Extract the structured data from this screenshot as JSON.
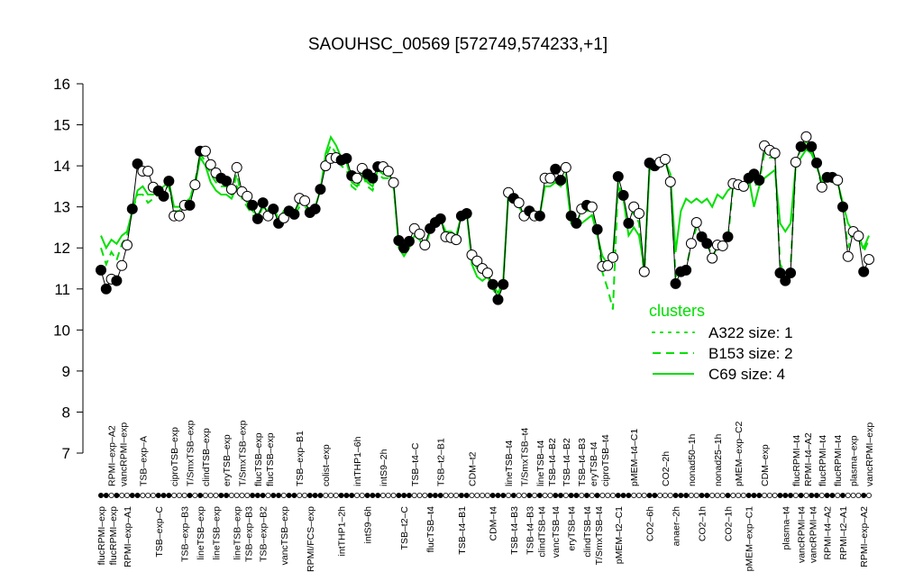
{
  "chart_data": {
    "type": "line",
    "title": "SAOUHSC_00569 [572749,574233,+1]",
    "xlabel": "",
    "ylabel": "",
    "ylim": [
      7,
      16
    ],
    "yticks": [
      7,
      8,
      9,
      10,
      11,
      12,
      13,
      14,
      15,
      16
    ],
    "grid": false,
    "legend": {
      "title": "clusters",
      "placement": "lower-right",
      "color": "#00e000",
      "entries": [
        {
          "label": "A322 size: 1",
          "style": "dotted"
        },
        {
          "label": "B153 size: 2",
          "style": "dashed"
        },
        {
          "label": "C69 size: 4",
          "style": "solid"
        }
      ]
    },
    "colors": {
      "data_line": "#000000",
      "cluster": "#00e000"
    },
    "values": [
      11.46,
      11.0,
      11.24,
      11.2,
      11.57,
      12.07,
      12.95,
      14.05,
      13.87,
      13.87,
      13.48,
      13.39,
      13.26,
      13.63,
      12.78,
      12.78,
      13.04,
      13.04,
      13.54,
      14.36,
      14.36,
      14.03,
      13.83,
      13.7,
      13.63,
      13.43,
      13.96,
      13.37,
      13.26,
      13.04,
      12.71,
      13.1,
      12.78,
      12.95,
      12.6,
      12.73,
      12.9,
      12.82,
      13.21,
      13.15,
      12.86,
      12.95,
      13.43,
      14.0,
      14.18,
      14.2,
      14.14,
      14.18,
      13.76,
      13.7,
      13.94,
      13.8,
      13.7,
      13.98,
      13.98,
      13.87,
      13.59,
      12.18,
      12.0,
      12.16,
      12.47,
      12.34,
      12.07,
      12.47,
      12.62,
      12.71,
      12.27,
      12.25,
      12.2,
      12.78,
      12.84,
      11.83,
      11.68,
      11.5,
      11.39,
      11.11,
      10.74,
      11.11,
      13.35,
      13.21,
      13.1,
      12.78,
      12.9,
      12.78,
      12.78,
      13.7,
      13.7,
      13.92,
      13.65,
      13.96,
      12.78,
      12.6,
      12.95,
      13.04,
      13.0,
      12.45,
      11.55,
      11.57,
      11.77,
      13.74,
      13.28,
      12.6,
      13.0,
      12.84,
      11.42,
      14.07,
      14.0,
      14.09,
      14.16,
      13.61,
      11.13,
      11.42,
      11.46,
      12.11,
      12.62,
      12.27,
      12.11,
      11.75,
      12.07,
      12.05,
      12.27,
      13.57,
      13.54,
      13.5,
      13.7,
      13.8,
      13.65,
      14.49,
      14.38,
      14.31,
      11.39,
      11.2,
      11.39,
      14.09,
      14.47,
      14.71,
      14.47,
      14.07,
      13.48,
      13.72,
      13.72,
      13.65,
      13.0,
      11.79,
      12.4,
      12.29,
      11.42,
      11.72
    ],
    "filled": [
      1,
      1,
      0,
      1,
      0,
      0,
      1,
      1,
      0,
      0,
      0,
      1,
      1,
      1,
      0,
      0,
      0,
      1,
      0,
      1,
      0,
      0,
      0,
      1,
      1,
      0,
      0,
      0,
      0,
      1,
      1,
      1,
      0,
      1,
      1,
      0,
      1,
      1,
      0,
      0,
      1,
      1,
      1,
      0,
      0,
      0,
      1,
      1,
      1,
      0,
      0,
      1,
      1,
      1,
      0,
      0,
      0,
      1,
      1,
      1,
      0,
      0,
      0,
      1,
      1,
      1,
      0,
      0,
      0,
      1,
      1,
      0,
      0,
      0,
      0,
      1,
      1,
      1,
      0,
      1,
      0,
      0,
      1,
      0,
      1,
      0,
      0,
      1,
      1,
      0,
      1,
      1,
      0,
      1,
      0,
      1,
      0,
      0,
      0,
      1,
      1,
      1,
      0,
      0,
      0,
      1,
      1,
      0,
      0,
      0,
      1,
      1,
      1,
      0,
      0,
      1,
      1,
      0,
      0,
      0,
      1,
      0,
      0,
      0,
      1,
      1,
      1,
      0,
      0,
      0,
      1,
      1,
      1,
      0,
      1,
      0,
      1,
      1,
      0,
      1,
      1,
      0,
      1,
      0,
      0,
      0,
      1,
      0
    ],
    "series": [
      {
        "name": "C69 size: 4",
        "style": "solid",
        "values": [
          12.3,
          12.0,
          12.2,
          12.1,
          12.3,
          12.4,
          12.9,
          13.4,
          13.5,
          13.3,
          13.3,
          13.4,
          13.5,
          13.6,
          13.0,
          13.0,
          13.1,
          13.2,
          13.5,
          14.2,
          14.0,
          13.6,
          13.4,
          13.3,
          13.3,
          13.2,
          13.5,
          13.3,
          13.1,
          12.9,
          12.8,
          13.0,
          12.9,
          13.0,
          12.7,
          12.9,
          13.0,
          12.9,
          13.1,
          13.1,
          12.9,
          13.0,
          13.4,
          14.3,
          14.7,
          14.5,
          14.2,
          14.1,
          13.6,
          13.5,
          13.9,
          13.6,
          13.5,
          13.9,
          13.8,
          13.8,
          13.6,
          12.0,
          11.8,
          12.0,
          12.3,
          12.2,
          12.0,
          12.4,
          12.6,
          12.7,
          12.4,
          12.4,
          12.3,
          12.8,
          12.9,
          11.6,
          11.3,
          11.2,
          11.3,
          11.1,
          10.9,
          11.2,
          13.3,
          13.2,
          13.0,
          12.8,
          12.9,
          12.9,
          12.8,
          13.5,
          13.5,
          13.6,
          13.5,
          13.7,
          12.6,
          12.5,
          12.6,
          12.7,
          12.8,
          12.3,
          11.8,
          11.6,
          11.8,
          13.5,
          13.2,
          12.3,
          12.5,
          12.3,
          11.5,
          13.9,
          14.0,
          14.1,
          14.1,
          13.8,
          11.9,
          12.9,
          13.2,
          13.1,
          13.2,
          13.1,
          13.2,
          13.0,
          13.3,
          13.2,
          13.4,
          13.5,
          13.5,
          13.4,
          13.7,
          13.0,
          13.5,
          13.7,
          13.8,
          13.9,
          12.6,
          12.4,
          12.6,
          14.0,
          14.2,
          14.4,
          14.3,
          14.0,
          13.6,
          13.7,
          13.6,
          13.6,
          13.1,
          12.6,
          12.4,
          12.2,
          12.0,
          12.3
        ]
      },
      {
        "name": "B153 size: 2",
        "style": "dashed",
        "values": [
          12.0,
          11.6,
          11.9,
          11.7,
          12.1,
          12.3,
          12.9,
          13.3,
          13.3,
          13.1,
          13.2,
          13.3,
          13.4,
          13.5,
          12.9,
          12.9,
          13.1,
          13.2,
          13.6,
          14.3,
          14.1,
          13.8,
          13.6,
          13.5,
          13.5,
          13.3,
          13.8,
          13.2,
          13.0,
          12.8,
          12.7,
          13.0,
          12.8,
          13.0,
          12.6,
          12.8,
          12.9,
          12.8,
          13.0,
          13.0,
          12.9,
          13.0,
          13.4,
          14.2,
          14.5,
          14.3,
          14.0,
          13.9,
          13.5,
          13.4,
          13.8,
          13.5,
          13.4,
          13.8,
          13.7,
          13.7,
          13.5,
          12.1,
          11.9,
          12.1,
          12.3,
          12.2,
          12.0,
          12.4,
          12.6,
          12.7,
          12.3,
          12.3,
          12.2,
          12.8,
          12.9,
          11.7,
          11.5,
          11.4,
          11.3,
          11.0,
          10.8,
          11.1,
          13.4,
          13.2,
          13.0,
          12.8,
          12.9,
          12.8,
          12.8,
          13.6,
          13.6,
          13.7,
          13.6,
          13.8,
          12.7,
          12.6,
          12.9,
          12.9,
          12.9,
          12.4,
          11.4,
          11.0,
          10.5,
          13.6,
          13.2,
          12.5,
          12.9,
          12.6,
          11.3,
          14.0,
          14.0,
          14.1,
          14.1,
          13.7,
          11.3,
          11.5,
          11.5,
          12.1,
          12.5,
          12.2,
          12.1,
          11.8,
          12.0,
          12.0,
          12.2,
          13.5,
          13.5,
          13.4,
          13.6,
          13.5,
          13.6,
          14.3,
          14.2,
          14.2,
          11.6,
          11.4,
          11.5,
          14.1,
          14.4,
          14.6,
          14.4,
          14.0,
          13.5,
          13.7,
          13.6,
          13.6,
          13.0,
          12.0,
          12.5,
          12.4,
          11.9,
          12.2
        ]
      }
    ],
    "xlabels_top": [
      {
        "i": 3,
        "text": "RPMI–exp–A2"
      },
      {
        "i": 5,
        "text": "vancRPMI–exp"
      },
      {
        "i": 9,
        "text": "TSB–exp–A"
      },
      {
        "i": 15,
        "text": "ciproTSB–exp"
      },
      {
        "i": 18,
        "text": "T/SmxTSB–exp"
      },
      {
        "i": 21,
        "text": "clindTSB–exp"
      },
      {
        "i": 25,
        "text": "eryTSB–exp"
      },
      {
        "i": 28,
        "text": "T/SmxTSB–exp"
      },
      {
        "i": 31,
        "text": "flucTSB–exp"
      },
      {
        "i": 33,
        "text": "flucTSB–exp"
      },
      {
        "i": 39,
        "text": "TSB–exp–B1"
      },
      {
        "i": 44,
        "text": "colist–exp"
      },
      {
        "i": 50,
        "text": "intTHP1–6h"
      },
      {
        "i": 55,
        "text": "intS9–2h"
      },
      {
        "i": 61,
        "text": "TSB–t4–C"
      },
      {
        "i": 66,
        "text": "TSB–t2–B1"
      },
      {
        "i": 72,
        "text": "CDM–t2"
      },
      {
        "i": 79,
        "text": "lineTSB–t4"
      },
      {
        "i": 82,
        "text": "T/SmxTSB–t4"
      },
      {
        "i": 85,
        "text": "lineTSB–t4"
      },
      {
        "i": 87,
        "text": "TSB–t4–B2"
      },
      {
        "i": 90,
        "text": "TSB–t4–B2"
      },
      {
        "i": 93,
        "text": "TSB–t4–B3"
      },
      {
        "i": 95,
        "text": "eryTSB–t4"
      },
      {
        "i": 97,
        "text": "ciproTSB–t4"
      },
      {
        "i": 103,
        "text": "pMEM–t4–C1"
      },
      {
        "i": 109,
        "text": "CO2–2h"
      },
      {
        "i": 114,
        "text": "nonad50–1h"
      },
      {
        "i": 119,
        "text": "nonad25–1h"
      },
      {
        "i": 123,
        "text": "pMEM–exp–C2"
      },
      {
        "i": 128,
        "text": "CDM–exp"
      },
      {
        "i": 134,
        "text": "flucRPMI–t4"
      },
      {
        "i": 135,
        "text": "RPMI–t4–A2"
      },
      {
        "i": 139,
        "text": "flucRPMI–t4"
      },
      {
        "i": 142,
        "text": "flucRPMI–t4"
      },
      {
        "i": 145,
        "text": "plasma–exp"
      },
      {
        "i": 148,
        "text": "vancRPMI–exp"
      }
    ],
    "xlabels_bottom": [
      {
        "i": 1,
        "text": "flucRPMI–exp"
      },
      {
        "i": 2,
        "text": "flucRPMI–exp"
      },
      {
        "i": 6,
        "text": "RPMI–exp–A1"
      },
      {
        "i": 12,
        "text": "TSB–exp–C"
      },
      {
        "i": 17,
        "text": "TSB–exp–B3"
      },
      {
        "i": 20,
        "text": "lineTSB–exp"
      },
      {
        "i": 23,
        "text": "lineTSB–exp"
      },
      {
        "i": 27,
        "text": "lineTSB–exp"
      },
      {
        "i": 29,
        "text": "TSB–exp–B3"
      },
      {
        "i": 32,
        "text": "TSB–exp–B2"
      },
      {
        "i": 36,
        "text": "vancTSB–exp"
      },
      {
        "i": 41,
        "text": "RPMI/FCS–exp"
      },
      {
        "i": 47,
        "text": "intTHP1–2h"
      },
      {
        "i": 52,
        "text": "intS9–6h"
      },
      {
        "i": 59,
        "text": "TSB–t2–C"
      },
      {
        "i": 64,
        "text": "flucTSB–t4"
      },
      {
        "i": 70,
        "text": "TSB–t4–B1"
      },
      {
        "i": 76,
        "text": "CDM–t4"
      },
      {
        "i": 80,
        "text": "TSB–t4–B3"
      },
      {
        "i": 83,
        "text": "TSB–t4–B3"
      },
      {
        "i": 84,
        "text": "clindTSB–t4"
      },
      {
        "i": 88,
        "text": "vancTSB–t4"
      },
      {
        "i": 91,
        "text": "eryTSB–t4"
      },
      {
        "i": 94,
        "text": "clindTSB–t4"
      },
      {
        "i": 96,
        "text": "T/SmxTSB–t4"
      },
      {
        "i": 100,
        "text": "pMEM–t2–C1"
      },
      {
        "i": 106,
        "text": "CO2–6h"
      },
      {
        "i": 111,
        "text": "anaer–2h"
      },
      {
        "i": 116,
        "text": "CO2–1h"
      },
      {
        "i": 121,
        "text": "CO2–1h"
      },
      {
        "i": 125,
        "text": "pMEM–exp–C1"
      },
      {
        "i": 132,
        "text": "plasma–t4"
      },
      {
        "i": 135,
        "text": "vancRPMI–t4"
      },
      {
        "i": 136,
        "text": "vancRPMI–t4"
      },
      {
        "i": 140,
        "text": "RPMI–t4–A2"
      },
      {
        "i": 143,
        "text": "RPMI–t2–A1"
      },
      {
        "i": 147,
        "text": "RPMI–exp–A2"
      }
    ]
  }
}
